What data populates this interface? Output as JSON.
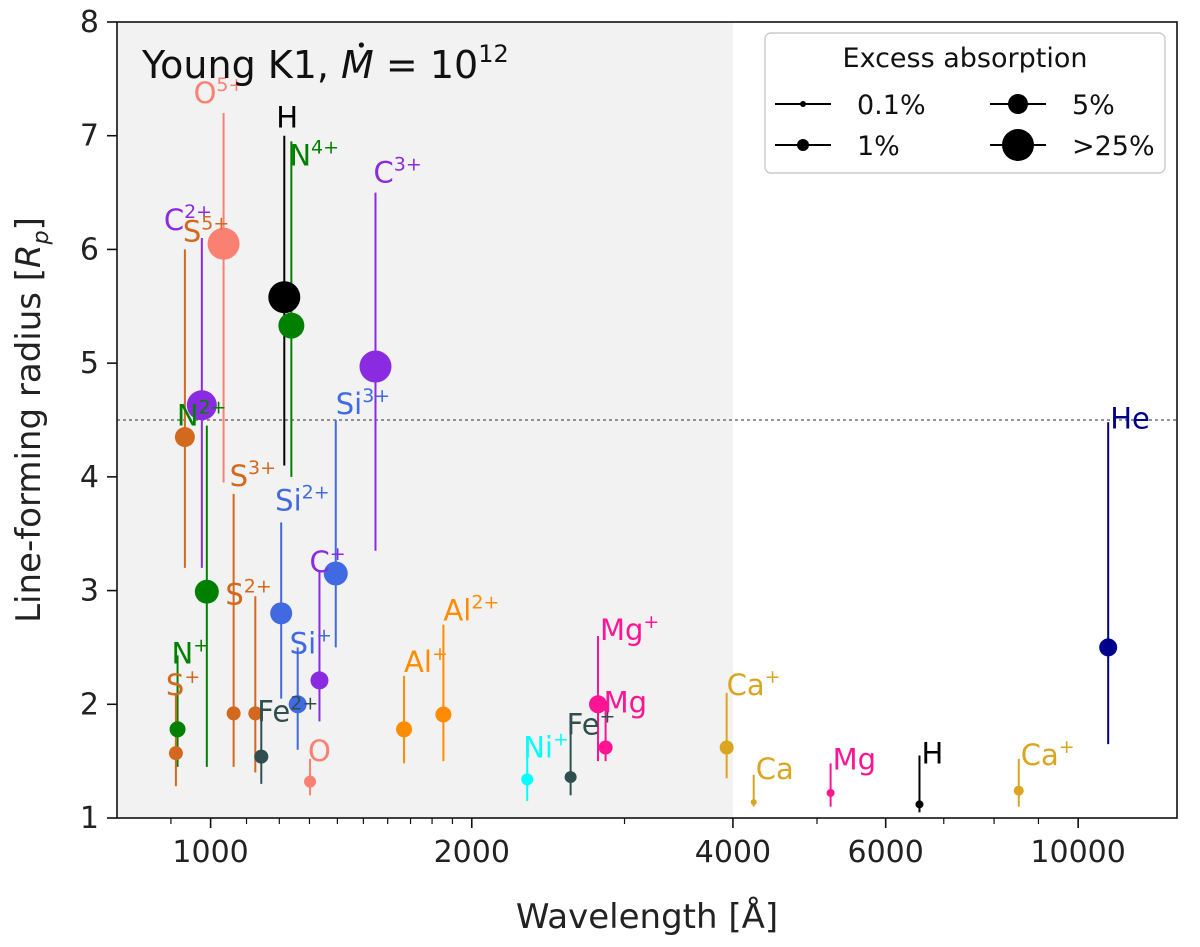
{
  "chart_data": {
    "type": "scatter",
    "title": "Young K1, Ṁ = 10^12",
    "title_parts": {
      "prefix": "Young K1, ",
      "symbol": "M",
      "equals": " = 10",
      "exponent": "12"
    },
    "xlabel": "Wavelength [Å]",
    "ylabel": "Line-forming radius [Rp]",
    "ylabel_parts": {
      "main": "Line-forming radius [",
      "italic": "R",
      "sub": "p",
      "close": "]"
    },
    "x_scale": "log",
    "xlim": [
      780,
      13000
    ],
    "ylim": [
      1,
      8
    ],
    "x_ticks": [
      {
        "value": 1000,
        "label": "1000"
      },
      {
        "value": 2000,
        "label": "2000"
      },
      {
        "value": 4000,
        "label": "4000"
      },
      {
        "value": 6000,
        "label": "6000"
      },
      {
        "value": 10000,
        "label": "10000"
      }
    ],
    "x_minor_ticks": [
      900,
      1100,
      1200,
      1300,
      1400,
      1500,
      1600,
      1700,
      1800,
      1900,
      3000,
      5000,
      7000,
      8000,
      9000
    ],
    "y_ticks": [
      {
        "value": 1,
        "label": "1"
      },
      {
        "value": 2,
        "label": "2"
      },
      {
        "value": 3,
        "label": "3"
      },
      {
        "value": 4,
        "label": "4"
      },
      {
        "value": 5,
        "label": "5"
      },
      {
        "value": 6,
        "label": "6"
      },
      {
        "value": 7,
        "label": "7"
      },
      {
        "value": 8,
        "label": "8"
      }
    ],
    "shaded_region": {
      "x_from": 780,
      "x_to": 4000,
      "color": "#f2f2f2"
    },
    "reference_line": {
      "y": 4.5,
      "style": "dotted",
      "color": "#555555"
    },
    "legend": {
      "title": "Excess absorption",
      "position": "top-right",
      "entries": [
        {
          "label": "0.1%",
          "marker_size": 3
        },
        {
          "label": "1%",
          "marker_size": 6
        },
        {
          "label": "5%",
          "marker_size": 10
        },
        {
          "label": ">25%",
          "marker_size": 16
        }
      ]
    },
    "points": [
      {
        "ion": "O",
        "charge": "5+",
        "x": 1035,
        "y": 6.05,
        "y_low": 3.95,
        "y_high": 7.2,
        "size": 16,
        "color": "#fa8072"
      },
      {
        "ion": "C",
        "charge": "2+",
        "x": 977,
        "y": 4.63,
        "y_low": 3.2,
        "y_high": 6.1,
        "size": 15,
        "color": "#8a2be2"
      },
      {
        "ion": "S",
        "charge": "5+",
        "x": 934,
        "y": 4.35,
        "y_low": 3.2,
        "y_high": 6.0,
        "size": 10,
        "color": "#d2691e"
      },
      {
        "ion": "H",
        "charge": "",
        "x": 1216,
        "y": 5.58,
        "y_low": 4.1,
        "y_high": 7.0,
        "size": 16,
        "color": "#000000"
      },
      {
        "ion": "N",
        "charge": "4+",
        "x": 1239,
        "y": 5.33,
        "y_low": 4.0,
        "y_high": 6.95,
        "size": 13,
        "color": "#008000"
      },
      {
        "ion": "C",
        "charge": "3+",
        "x": 1549,
        "y": 4.97,
        "y_low": 3.35,
        "y_high": 6.5,
        "size": 16,
        "color": "#8a2be2"
      },
      {
        "ion": "N",
        "charge": "2+",
        "x": 990,
        "y": 2.99,
        "y_low": 1.45,
        "y_high": 4.45,
        "size": 12,
        "color": "#008000"
      },
      {
        "ion": "Si",
        "charge": "3+",
        "x": 1394,
        "y": 3.15,
        "y_low": 2.5,
        "y_high": 4.5,
        "size": 12,
        "color": "#4169e1"
      },
      {
        "ion": "S",
        "charge": "3+",
        "x": 1063,
        "y": 1.92,
        "y_low": 1.45,
        "y_high": 3.85,
        "size": 7,
        "color": "#d2691e"
      },
      {
        "ion": "Si",
        "charge": "2+",
        "x": 1206,
        "y": 2.8,
        "y_low": 2.05,
        "y_high": 3.6,
        "size": 11,
        "color": "#4169e1"
      },
      {
        "ion": "C",
        "charge": "+",
        "x": 1335,
        "y": 2.21,
        "y_low": 1.85,
        "y_high": 3.18,
        "size": 9,
        "color": "#8a2be2"
      },
      {
        "ion": "S",
        "charge": "2+",
        "x": 1126,
        "y": 1.92,
        "y_low": 1.4,
        "y_high": 2.95,
        "size": 7,
        "color": "#d2691e"
      },
      {
        "ion": "Si",
        "charge": "+",
        "x": 1260,
        "y": 2.0,
        "y_low": 1.6,
        "y_high": 2.5,
        "size": 9,
        "color": "#4169e1"
      },
      {
        "ion": "N",
        "charge": "+",
        "x": 916,
        "y": 1.78,
        "y_low": 1.45,
        "y_high": 2.43,
        "size": 8,
        "color": "#008000"
      },
      {
        "ion": "S",
        "charge": "+",
        "x": 912,
        "y": 1.57,
        "y_low": 1.28,
        "y_high": 2.1,
        "size": 7,
        "color": "#d2691e"
      },
      {
        "ion": "Fe",
        "charge": "2+",
        "x": 1144,
        "y": 1.54,
        "y_low": 1.3,
        "y_high": 1.9,
        "size": 7,
        "color": "#2f4f4f"
      },
      {
        "ion": "O",
        "charge": "",
        "x": 1302,
        "y": 1.32,
        "y_low": 1.2,
        "y_high": 1.52,
        "size": 6,
        "color": "#fa8072"
      },
      {
        "ion": "Al",
        "charge": "+",
        "x": 1671,
        "y": 1.78,
        "y_low": 1.48,
        "y_high": 2.25,
        "size": 8,
        "color": "#ff8c00"
      },
      {
        "ion": "Al",
        "charge": "2+",
        "x": 1855,
        "y": 1.91,
        "y_low": 1.5,
        "y_high": 2.7,
        "size": 8,
        "color": "#ff8c00"
      },
      {
        "ion": "Ni",
        "charge": "+",
        "x": 2317,
        "y": 1.34,
        "y_low": 1.15,
        "y_high": 1.55,
        "size": 6,
        "color": "#00ffff"
      },
      {
        "ion": "Fe",
        "charge": "+",
        "x": 2600,
        "y": 1.36,
        "y_low": 1.2,
        "y_high": 1.75,
        "size": 6,
        "color": "#2f4f4f"
      },
      {
        "ion": "Mg",
        "charge": "+",
        "x": 2796,
        "y": 2.0,
        "y_low": 1.5,
        "y_high": 2.6,
        "size": 9,
        "color": "#ff1493"
      },
      {
        "ion": "Mg",
        "charge": "",
        "x": 2853,
        "y": 1.62,
        "y_low": 1.5,
        "y_high": 2.0,
        "size": 7,
        "color": "#ff1493"
      },
      {
        "ion": "Ca",
        "charge": "+",
        "x": 3934,
        "y": 1.62,
        "y_low": 1.35,
        "y_high": 2.1,
        "size": 7,
        "color": "#daa520"
      },
      {
        "ion": "Ca",
        "charge": "",
        "x": 4227,
        "y": 1.14,
        "y_low": 1.1,
        "y_high": 1.38,
        "size": 3,
        "color": "#daa520"
      },
      {
        "ion": "Mg",
        "charge": "",
        "x": 5184,
        "y": 1.22,
        "y_low": 1.1,
        "y_high": 1.48,
        "size": 4,
        "color": "#ff1493"
      },
      {
        "ion": "H",
        "charge": "",
        "x": 6563,
        "y": 1.12,
        "y_low": 1.05,
        "y_high": 1.55,
        "size": 4,
        "color": "#000000"
      },
      {
        "ion": "Ca",
        "charge": "+",
        "x": 8542,
        "y": 1.24,
        "y_low": 1.1,
        "y_high": 1.52,
        "size": 5,
        "color": "#daa520"
      },
      {
        "ion": "He",
        "charge": "",
        "x": 10830,
        "y": 2.5,
        "y_low": 1.65,
        "y_high": 4.48,
        "size": 9,
        "color": "#00008b"
      }
    ]
  }
}
